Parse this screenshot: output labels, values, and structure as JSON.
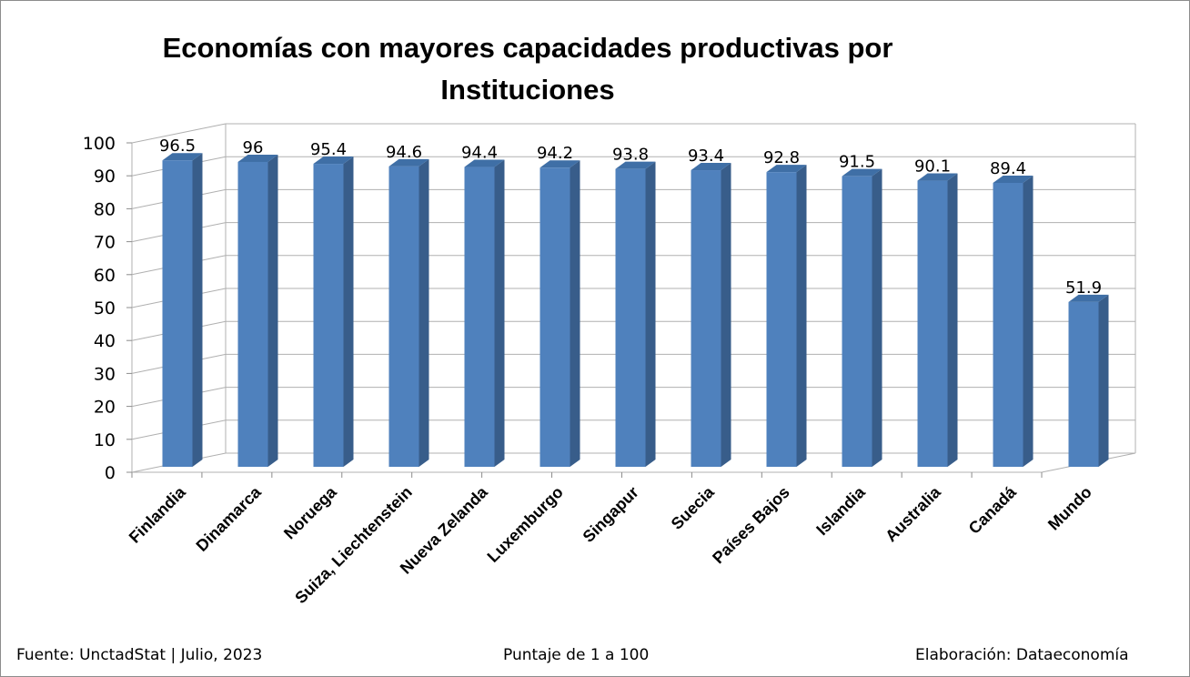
{
  "chart_data": {
    "type": "bar",
    "title": "Economías con mayores capacidades productivas por Instituciones",
    "categories": [
      "Finlandia",
      "Dinamarca",
      "Noruega",
      "Suiza, Liechtenstein",
      "Nueva Zelanda",
      "Luxemburgo",
      "Singapur",
      "Suecia",
      "Países Bajos",
      "Islandia",
      "Australia",
      "Canadá",
      "Mundo"
    ],
    "values": [
      96.5,
      96,
      95.4,
      94.6,
      94.4,
      94.2,
      93.8,
      93.4,
      92.8,
      91.5,
      90.1,
      89.4,
      51.9
    ],
    "data_labels": [
      "96.5",
      "96",
      "95.4",
      "94.6",
      "94.4",
      "94.2",
      "93.8",
      "93.4",
      "92.8",
      "91.5",
      "90.1",
      "89.4",
      "51.9"
    ],
    "ylim": [
      0,
      100
    ],
    "yticks": [
      "0",
      "10",
      "20",
      "30",
      "40",
      "50",
      "60",
      "70",
      "80",
      "90",
      "100"
    ],
    "xlabel": "",
    "ylabel": "",
    "grid": true,
    "legend": "none",
    "bar_color": "#4f81bd"
  },
  "footer": {
    "source": "Fuente: UnctadStat | Julio,  2023",
    "scale": "Puntaje de 1 a 100",
    "credit": "Elaboración: Dataeconomía"
  }
}
